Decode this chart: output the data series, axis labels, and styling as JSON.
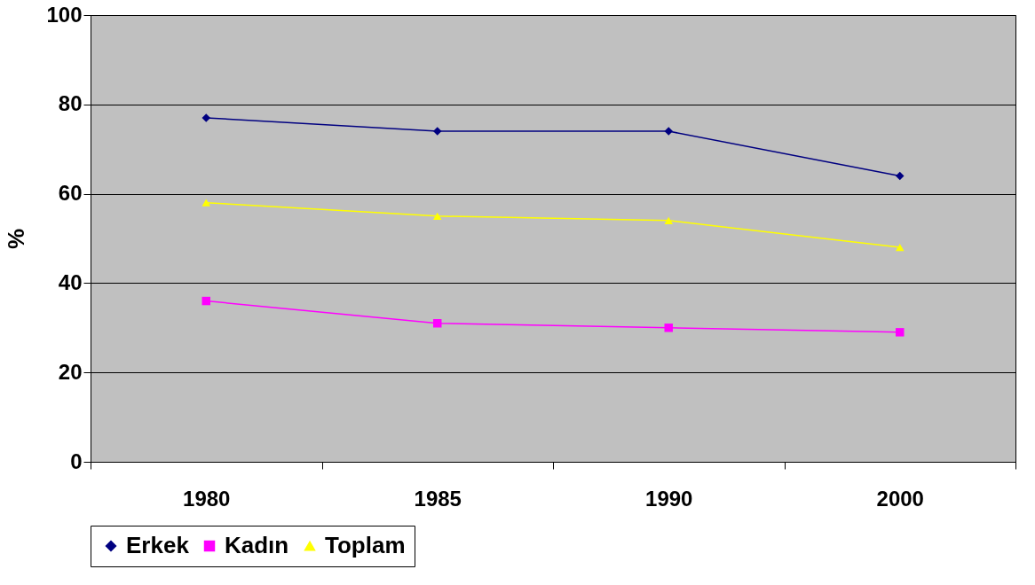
{
  "chart_data": {
    "type": "line",
    "ylabel": "%",
    "categories": [
      "1980",
      "1985",
      "1990",
      "2000"
    ],
    "series": [
      {
        "name": "Erkek",
        "color": "#000080",
        "marker": "diamond",
        "values": [
          77,
          74,
          74,
          64
        ]
      },
      {
        "name": "Kadın",
        "color": "#ff00ff",
        "marker": "square",
        "values": [
          36,
          31,
          30,
          29
        ]
      },
      {
        "name": "Toplam",
        "color": "#ffff00",
        "marker": "triangle",
        "values": [
          58,
          55,
          54,
          48
        ]
      }
    ],
    "ylim": [
      0,
      100
    ],
    "yticks": [
      0,
      20,
      40,
      60,
      80,
      100
    ],
    "grid": "y",
    "legend": "bottom"
  }
}
